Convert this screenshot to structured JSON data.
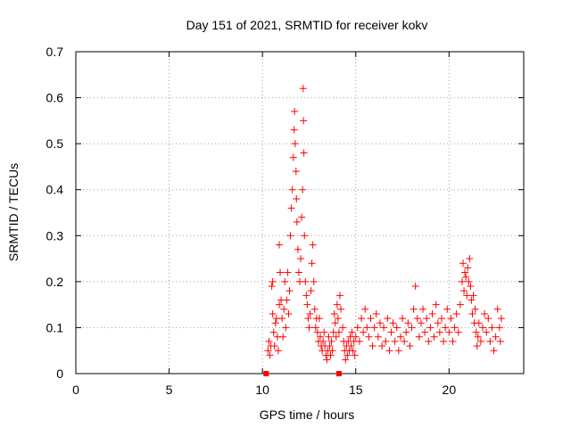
{
  "chart_data": {
    "type": "scatter",
    "title": "Day 151 of 2021, SRMTID for receiver kokv",
    "xlabel": "GPS time / hours",
    "ylabel": "SRMTID / TECUs",
    "xlim": [
      0,
      24
    ],
    "ylim": [
      0,
      0.7
    ],
    "xticks": [
      0,
      5,
      10,
      15,
      20
    ],
    "yticks": [
      0,
      0.1,
      0.2,
      0.3,
      0.4,
      0.5,
      0.6,
      0.7
    ],
    "xtick_labels": [
      "0",
      "5",
      "10",
      "15",
      "20"
    ],
    "ytick_labels": [
      "0",
      "0.1",
      "0.2",
      "0.3",
      "0.4",
      "0.5",
      "0.6",
      "0.7"
    ],
    "grid": true,
    "marker": "+",
    "series": [
      {
        "name": "SRMTID",
        "color": "#ff0000",
        "points": [
          [
            10.3,
            0.05
          ],
          [
            10.35,
            0.07
          ],
          [
            10.4,
            0.04
          ],
          [
            10.45,
            0.06
          ],
          [
            10.5,
            0.19
          ],
          [
            10.55,
            0.2
          ],
          [
            10.55,
            0.13
          ],
          [
            10.6,
            0.09
          ],
          [
            10.65,
            0.06
          ],
          [
            10.7,
            0.11
          ],
          [
            10.75,
            0.12
          ],
          [
            10.8,
            0.08
          ],
          [
            10.85,
            0.05
          ],
          [
            10.9,
            0.15
          ],
          [
            10.9,
            0.28
          ],
          [
            10.95,
            0.22
          ],
          [
            11.0,
            0.16
          ],
          [
            11.05,
            0.12
          ],
          [
            11.1,
            0.08
          ],
          [
            11.15,
            0.14
          ],
          [
            11.2,
            0.2
          ],
          [
            11.25,
            0.1
          ],
          [
            11.3,
            0.16
          ],
          [
            11.35,
            0.22
          ],
          [
            11.4,
            0.13
          ],
          [
            11.45,
            0.18
          ],
          [
            11.5,
            0.3
          ],
          [
            11.55,
            0.36
          ],
          [
            11.6,
            0.4
          ],
          [
            11.65,
            0.47
          ],
          [
            11.7,
            0.53
          ],
          [
            11.72,
            0.57
          ],
          [
            11.75,
            0.5
          ],
          [
            11.8,
            0.44
          ],
          [
            11.82,
            0.38
          ],
          [
            11.85,
            0.33
          ],
          [
            11.9,
            0.27
          ],
          [
            11.95,
            0.22
          ],
          [
            12.0,
            0.2
          ],
          [
            12.05,
            0.25
          ],
          [
            12.1,
            0.34
          ],
          [
            12.15,
            0.4
          ],
          [
            12.18,
            0.62
          ],
          [
            12.2,
            0.55
          ],
          [
            12.22,
            0.48
          ],
          [
            12.25,
            0.3
          ],
          [
            12.3,
            0.2
          ],
          [
            12.35,
            0.17
          ],
          [
            12.4,
            0.15
          ],
          [
            12.45,
            0.12
          ],
          [
            12.5,
            0.1
          ],
          [
            12.55,
            0.13
          ],
          [
            12.6,
            0.18
          ],
          [
            12.65,
            0.24
          ],
          [
            12.7,
            0.28
          ],
          [
            12.75,
            0.2
          ],
          [
            12.8,
            0.14
          ],
          [
            12.85,
            0.1
          ],
          [
            12.9,
            0.12
          ],
          [
            12.95,
            0.09
          ],
          [
            13.0,
            0.07
          ],
          [
            13.05,
            0.12
          ],
          [
            13.1,
            0.08
          ],
          [
            13.15,
            0.06
          ],
          [
            13.2,
            0.05
          ],
          [
            13.25,
            0.07
          ],
          [
            13.3,
            0.09
          ],
          [
            13.35,
            0.06
          ],
          [
            13.4,
            0.04
          ],
          [
            13.45,
            0.03
          ],
          [
            13.5,
            0.05
          ],
          [
            13.55,
            0.08
          ],
          [
            13.6,
            0.06
          ],
          [
            13.65,
            0.04
          ],
          [
            13.7,
            0.07
          ],
          [
            13.75,
            0.05
          ],
          [
            13.8,
            0.09
          ],
          [
            13.85,
            0.13
          ],
          [
            13.9,
            0.11
          ],
          [
            13.95,
            0.08
          ],
          [
            14.0,
            0.15
          ],
          [
            14.05,
            0.12
          ],
          [
            14.1,
            0.09
          ],
          [
            14.15,
            0.17
          ],
          [
            14.2,
            0.14
          ],
          [
            14.3,
            0.1
          ],
          [
            14.35,
            0.07
          ],
          [
            14.4,
            0.05
          ],
          [
            14.45,
            0.03
          ],
          [
            14.5,
            0.06
          ],
          [
            14.55,
            0.04
          ],
          [
            14.6,
            0.07
          ],
          [
            14.65,
            0.05
          ],
          [
            14.7,
            0.08
          ],
          [
            14.75,
            0.06
          ],
          [
            14.8,
            0.09
          ],
          [
            14.85,
            0.05
          ],
          [
            14.9,
            0.07
          ],
          [
            14.95,
            0.04
          ],
          [
            15.0,
            0.08
          ],
          [
            15.1,
            0.1
          ],
          [
            15.2,
            0.07
          ],
          [
            15.3,
            0.12
          ],
          [
            15.4,
            0.09
          ],
          [
            15.5,
            0.14
          ],
          [
            15.6,
            0.1
          ],
          [
            15.7,
            0.08
          ],
          [
            15.8,
            0.12
          ],
          [
            15.9,
            0.06
          ],
          [
            16.0,
            0.1
          ],
          [
            16.1,
            0.13
          ],
          [
            16.2,
            0.08
          ],
          [
            16.3,
            0.11
          ],
          [
            16.4,
            0.06
          ],
          [
            16.5,
            0.1
          ],
          [
            16.6,
            0.07
          ],
          [
            16.7,
            0.12
          ],
          [
            16.8,
            0.05
          ],
          [
            16.9,
            0.09
          ],
          [
            17.0,
            0.11
          ],
          [
            17.1,
            0.07
          ],
          [
            17.2,
            0.1
          ],
          [
            17.3,
            0.05
          ],
          [
            17.4,
            0.08
          ],
          [
            17.5,
            0.12
          ],
          [
            17.6,
            0.07
          ],
          [
            17.7,
            0.09
          ],
          [
            17.8,
            0.11
          ],
          [
            17.9,
            0.06
          ],
          [
            18.0,
            0.1
          ],
          [
            18.1,
            0.14
          ],
          [
            18.2,
            0.19
          ],
          [
            18.3,
            0.12
          ],
          [
            18.4,
            0.08
          ],
          [
            18.5,
            0.11
          ],
          [
            18.6,
            0.14
          ],
          [
            18.7,
            0.09
          ],
          [
            18.8,
            0.12
          ],
          [
            18.9,
            0.07
          ],
          [
            19.0,
            0.1
          ],
          [
            19.1,
            0.13
          ],
          [
            19.2,
            0.08
          ],
          [
            19.3,
            0.15
          ],
          [
            19.4,
            0.11
          ],
          [
            19.5,
            0.09
          ],
          [
            19.6,
            0.12
          ],
          [
            19.7,
            0.07
          ],
          [
            19.8,
            0.1
          ],
          [
            19.9,
            0.14
          ],
          [
            20.0,
            0.09
          ],
          [
            20.1,
            0.12
          ],
          [
            20.2,
            0.07
          ],
          [
            20.3,
            0.1
          ],
          [
            20.4,
            0.13
          ],
          [
            20.5,
            0.09
          ],
          [
            20.6,
            0.15
          ],
          [
            20.7,
            0.2
          ],
          [
            20.75,
            0.24
          ],
          [
            20.8,
            0.18
          ],
          [
            20.85,
            0.22
          ],
          [
            20.9,
            0.21
          ],
          [
            20.95,
            0.17
          ],
          [
            21.0,
            0.23
          ],
          [
            21.05,
            0.2
          ],
          [
            21.1,
            0.25
          ],
          [
            21.15,
            0.19
          ],
          [
            21.2,
            0.16
          ],
          [
            21.25,
            0.13
          ],
          [
            21.3,
            0.17
          ],
          [
            21.35,
            0.11
          ],
          [
            21.4,
            0.14
          ],
          [
            21.45,
            0.09
          ],
          [
            21.5,
            0.06
          ],
          [
            21.55,
            0.08
          ],
          [
            21.6,
            0.11
          ],
          [
            21.7,
            0.07
          ],
          [
            21.8,
            0.1
          ],
          [
            21.9,
            0.13
          ],
          [
            22.0,
            0.09
          ],
          [
            22.1,
            0.12
          ],
          [
            22.2,
            0.07
          ],
          [
            22.3,
            0.1
          ],
          [
            22.4,
            0.05
          ],
          [
            22.5,
            0.08
          ],
          [
            22.6,
            0.14
          ],
          [
            22.7,
            0.1
          ],
          [
            22.75,
            0.07
          ],
          [
            22.8,
            0.12
          ]
        ]
      },
      {
        "name": "markers-at-zero",
        "color": "#ff0000",
        "marker": "square",
        "points": [
          [
            10.2,
            0
          ],
          [
            14.1,
            0
          ]
        ]
      }
    ]
  }
}
